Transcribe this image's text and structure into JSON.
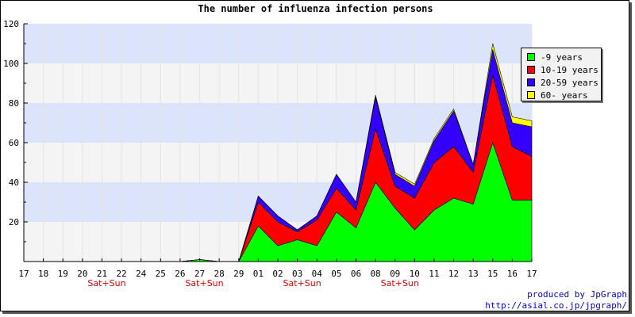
{
  "title": "The number of influenza infection persons",
  "credits": [
    "produced by JpGraph",
    "http://asial.co.jp/jpgraph/"
  ],
  "chart_data": {
    "type": "area",
    "stacked": true,
    "title": "The number of influenza infection persons",
    "xlabel": "",
    "ylabel": "",
    "ylim": [
      0,
      120
    ],
    "yticks": [
      20,
      40,
      60,
      80,
      100,
      120
    ],
    "grid": true,
    "band_colors": [
      "#f4f4f4",
      "#dbe4fb"
    ],
    "legend_position": "top-right",
    "x": [
      "17",
      "18",
      "19",
      "20",
      "21",
      "22",
      "24",
      "25",
      "26",
      "27",
      "28",
      "29",
      "01",
      "02",
      "03",
      "04",
      "05",
      "06",
      "08",
      "09",
      "10",
      "11",
      "12",
      "13",
      "15",
      "16",
      "17"
    ],
    "day_annotations": [
      {
        "index": 4,
        "text": "Sat+Sun"
      },
      {
        "index": 9,
        "text": "Sat+Sun"
      },
      {
        "index": 14,
        "text": "Sat+Sun"
      },
      {
        "index": 19,
        "text": "Sat+Sun"
      }
    ],
    "annotation_color": "#dd0000",
    "series": [
      {
        "name": "-9 years",
        "color": "#00ff00",
        "values": [
          0,
          0,
          0,
          0,
          0,
          0,
          0,
          0,
          0,
          1,
          0,
          0,
          18,
          8,
          11,
          8,
          25,
          17,
          40,
          27,
          16,
          26,
          32,
          29,
          60,
          31,
          31
        ]
      },
      {
        "name": "10-19 years",
        "color": "#ff0000",
        "values": [
          0,
          0,
          0,
          0,
          0,
          0,
          0,
          0,
          0,
          0,
          0,
          0,
          12,
          12,
          4,
          13,
          12,
          9,
          27,
          11,
          16,
          24,
          26,
          16,
          34,
          27,
          22
        ]
      },
      {
        "name": "20-59 years",
        "color": "#3300ff",
        "values": [
          0,
          0,
          0,
          0,
          0,
          0,
          0,
          0,
          0,
          0,
          0,
          0,
          3,
          3,
          1,
          2,
          7,
          4,
          16,
          6,
          6,
          11,
          18,
          4,
          13,
          12,
          15
        ]
      },
      {
        "name": "60- years",
        "color": "#ffff00",
        "values": [
          0,
          0,
          0,
          0,
          0,
          0,
          0,
          0,
          0,
          0,
          0,
          0,
          0,
          0,
          0,
          0,
          0,
          0,
          1,
          1,
          1,
          1,
          1,
          0,
          3,
          3,
          3
        ]
      }
    ]
  }
}
